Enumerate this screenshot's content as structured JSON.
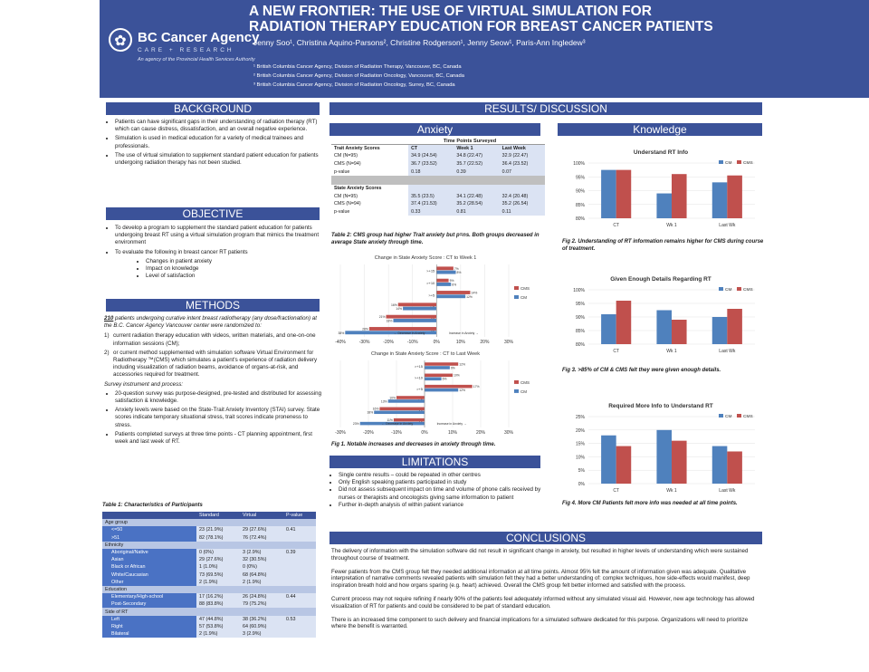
{
  "header": {
    "org": "BC Cancer Agency",
    "org_sub": "CARE + RESEARCH",
    "org_tag": "An agency of the Provincial Health Services Authority",
    "title_line1": "A NEW FRONTIER: THE USE OF VIRTUAL SIMULATION FOR",
    "title_line2": "RADIATION THERAPY EDUCATION FOR BREAST CANCER PATIENTS",
    "authors": "Jenny Soo¹, Christina Aquino-Parsons², Christine Rodgerson¹, Jenny Seow¹, Paris-Ann Ingledew³",
    "affiliations": [
      "¹ British Columbia Cancer Agency, Division of Radiation Therapy, Vancouver, BC, Canada",
      "² British Columbia Cancer Agency, Division of Radiation Oncology, Vancouver, BC, Canada",
      "³ British Columbia Cancer Agency, Division of Radiation Oncology, Surrey, BC, Canada"
    ]
  },
  "background": {
    "heading": "BACKGROUND",
    "bullets": [
      "Patients can have significant gaps in their understanding of radiation therapy (RT) which can cause distress, dissatisfaction, and an overall negative experience.",
      "Simulation is used in medical education for a variety of medical trainees and professionals.",
      "The use of virtual simulation to supplement standard patient education for patients undergoing radiation therapy has not been studied."
    ]
  },
  "objective": {
    "heading": "OBJECTIVE",
    "bullets": [
      "To develop a program to supplement the standard patient education for patients undergoing breast RT using a virtual simulation program that mimics the treatment environment",
      "To evaluate the following in breast cancer RT patients"
    ],
    "sub": [
      "Changes in patient anxiety",
      "Impact on knowledge",
      "Level of satisfaction"
    ]
  },
  "methods": {
    "heading": "METHODS",
    "intro_n": "210",
    "intro": " patients undergoing curative intent breast radiotherapy (any dose/fractionation) at the B.C. Cancer Agency Vancouver center were randomized to:",
    "items": [
      "current radiation therapy education with videos, written materials, and one-on-one information sessions (CM);",
      "or current method supplemented with simulation software Virtual Environment for Radiotherapy ™(CMS) which simulates a patient's experience of radiation delivery including visualization of radiation beams, avoidance of organs-at-risk, and accessories required for treatment."
    ],
    "survey_head": "Survey instrument and process:",
    "survey": [
      "20-question survey was purpose-designed, pre-tested and distributed for assessing satisfaction & knowledge.",
      "Anxiety levels were based on the State-Trait Anxiety Inventory (STAI) survey. State scores indicate temporary situational stress, trait scores indicate proneness to stress.",
      "Patients completed surveys at three time points - CT planning appointment, first week and last week of RT."
    ]
  },
  "characteristics": {
    "caption": "Table 1: Characteristics of Participants",
    "headers": [
      "",
      "Standard",
      "Virtual",
      "P-value"
    ],
    "rows": [
      {
        "type": "sec",
        "label": "Age group"
      },
      {
        "type": "row",
        "label": "<=50",
        "a": "23 (21.9%)",
        "b": "29 (27.6%)",
        "p": "0.41"
      },
      {
        "type": "row",
        "label": ">51",
        "a": "82 (78.1%)",
        "b": "76 (72.4%)",
        "p": ""
      },
      {
        "type": "sec",
        "label": "Ethnicity"
      },
      {
        "type": "row",
        "label": "Aboriginal/Native",
        "a": "0 (0%)",
        "b": "3 (2.9%)",
        "p": "0.39"
      },
      {
        "type": "row",
        "label": "Asian",
        "a": "29 (27.6%)",
        "b": "32 (30.5%)",
        "p": ""
      },
      {
        "type": "row",
        "label": "Black or African",
        "a": "1 (1.0%)",
        "b": "0 (0%)",
        "p": ""
      },
      {
        "type": "row",
        "label": "White/Caucasian",
        "a": "73 (69.5%)",
        "b": "68 (64.8%)",
        "p": ""
      },
      {
        "type": "row",
        "label": "Other",
        "a": "2 (1.9%)",
        "b": "2 (1.9%)",
        "p": ""
      },
      {
        "type": "sec",
        "label": "Education"
      },
      {
        "type": "row",
        "label": "Elementary/High-school",
        "a": "17 (16.2%)",
        "b": "26 (24.8%)",
        "p": "0.44"
      },
      {
        "type": "row",
        "label": "Post-Secondary",
        "a": "88 (83.8%)",
        "b": "79 (75.2%)",
        "p": ""
      },
      {
        "type": "sec",
        "label": "Side of RT"
      },
      {
        "type": "row",
        "label": "Left",
        "a": "47 (44.8%)",
        "b": "38 (36.2%)",
        "p": "0.53"
      },
      {
        "type": "row",
        "label": "Right",
        "a": "57 (53.8%)",
        "b": "64 (60.9%)",
        "p": ""
      },
      {
        "type": "row",
        "label": "Bilateral",
        "a": "2 (1.9%)",
        "b": "3 (2.9%)",
        "p": ""
      }
    ]
  },
  "results": {
    "heading": "RESULTS/ DISCUSSION",
    "anxiety_head": "Anxiety",
    "knowledge_head": "Knowledge",
    "anx_table": {
      "group_header": "Time Points Surveyed",
      "cols": [
        "",
        "CT",
        "Week 1",
        "Last Week"
      ],
      "trait": [
        [
          "Trait Anxiety Scores",
          "CT",
          "Week 1",
          "Last Week"
        ],
        [
          "CM (N=95)",
          "34.9 (24.54)",
          "34.8 (22.47)",
          "32.9 (22.47)"
        ],
        [
          "CMS (N=94)",
          "36.7 (23.52)",
          "35.7 (22.52)",
          "36.4 (23.52)"
        ],
        [
          "p-value",
          "0.18",
          "0.39",
          "0.07"
        ]
      ],
      "state": [
        [
          "State Anxiety Scores",
          "",
          "",
          ""
        ],
        [
          "CM (N=95)",
          "35.5 (23.5)",
          "34.1 (22.48)",
          "32.4 (20.48)"
        ],
        [
          "CMS (N=94)",
          "37.4 (21.53)",
          "35.2 (28.54)",
          "35.2 (26.54)"
        ],
        [
          "p-value",
          "0.33",
          "0.81",
          "0.11"
        ]
      ]
    },
    "table2_caption": "Table 2: CMS group had higher Trait anxiety but p=ns. Both groups decreased in average State anxiety through time.",
    "fig1_caption": "Fig 1. Notable increases and decreases in anxiety through time.",
    "fig2_caption": "Fig 2. Understanding of RT information remains higher for CMS during course of treatment.",
    "fig3_caption": "Fig 3. >85% of CM & CMS felt they were given enough details.",
    "fig4_caption": "Fig 4. More CM Patients felt more info was needed at all time points."
  },
  "chart_data": [
    {
      "type": "bar",
      "orientation": "horizontal",
      "title": "Change in State Anxiety Score : CT to Week 1",
      "categories": [
        ">+15",
        ">+10",
        ">+5",
        "<-5",
        "<-10",
        "<-15"
      ],
      "series": [
        {
          "name": "CMS",
          "color": "#c0504d",
          "values": [
            7,
            5,
            14,
            -16,
            -21,
            -28
          ]
        },
        {
          "name": "CM",
          "color": "#4f81bd",
          "values": [
            8,
            6,
            12,
            -14,
            -18,
            -38
          ]
        }
      ],
      "xlim": [
        -40,
        30
      ],
      "ticks": [
        "-40%",
        "-30%",
        "-20%",
        "-10%",
        "0%",
        "10%",
        "20%",
        "30%"
      ],
      "annotations": [
        "Decrease in Anxiety",
        "Increase in Anxiety"
      ]
    },
    {
      "type": "bar",
      "orientation": "horizontal",
      "title": "Change in State Anxiety Score : CT to Last Week",
      "categories": [
        ">+15",
        ">+10",
        ">+5",
        "<-5",
        "<-10",
        "<-15"
      ],
      "series": [
        {
          "name": "CMS",
          "color": "#c0504d",
          "values": [
            12,
            10,
            17,
            -10,
            -16,
            -11
          ]
        },
        {
          "name": "CM",
          "color": "#4f81bd",
          "values": [
            9,
            6,
            12,
            -13,
            -18,
            -23
          ]
        }
      ],
      "xlim": [
        -30,
        30
      ],
      "ticks": [
        "-30%",
        "-20%",
        "-10%",
        "0%",
        "10%",
        "20%",
        "30%"
      ],
      "annotations": [
        "Decrease in Anxiety",
        "Increase in Anxiety"
      ]
    },
    {
      "type": "bar",
      "title": "Understand RT Info",
      "categories": [
        "CT",
        "Wk 1",
        "Last Wk"
      ],
      "series": [
        {
          "name": "CM",
          "color": "#4f81bd",
          "values": [
            97.5,
            89,
            93
          ]
        },
        {
          "name": "CMS",
          "color": "#c0504d",
          "values": [
            97.5,
            96,
            95.5
          ]
        }
      ],
      "ylim": [
        80,
        100
      ],
      "ticks": [
        "80%",
        "85%",
        "90%",
        "95%",
        "100%"
      ]
    },
    {
      "type": "bar",
      "title": "Given Enough Details Regarding RT",
      "categories": [
        "CT",
        "Wk 1",
        "Last Wk"
      ],
      "series": [
        {
          "name": "CM",
          "color": "#4f81bd",
          "values": [
            91,
            92.5,
            90
          ]
        },
        {
          "name": "CMS",
          "color": "#c0504d",
          "values": [
            96,
            89,
            93
          ]
        }
      ],
      "ylim": [
        80,
        100
      ],
      "ticks": [
        "80%",
        "85%",
        "90%",
        "95%",
        "100%"
      ]
    },
    {
      "type": "bar",
      "title": "Required More Info to Understand RT",
      "categories": [
        "CT",
        "Wk 1",
        "Last Wk"
      ],
      "series": [
        {
          "name": "CM",
          "color": "#4f81bd",
          "values": [
            18,
            20,
            14
          ]
        },
        {
          "name": "CMS",
          "color": "#c0504d",
          "values": [
            14,
            16,
            12
          ]
        }
      ],
      "ylim": [
        0,
        25
      ],
      "ticks": [
        "0%",
        "5%",
        "10%",
        "15%",
        "20%",
        "25%"
      ]
    }
  ],
  "limitations": {
    "heading": "LIMITATIONS",
    "bullets": [
      "Single centre results – could be repeated in other centres",
      "Only English speaking patients participated in study",
      "Did not assess subsequent impact on time and volume of phone calls received by nurses or therapists and oncologists giving same information to patient",
      "Further in-depth analysis of within patient variance"
    ]
  },
  "conclusions": {
    "heading": "CONCLUSIONS",
    "paragraphs": [
      "The delivery of information with the simulation software did not result in significant change in anxiety, but resulted in higher levels of understanding which were sustained throughout course of treatment.",
      "Fewer patients from the CMS group felt they needed additional information at all time points. Almost 95% felt the amount of information given was adequate. Qualitative interpretation of narrative comments revealed patients with simulation felt they had a better understanding of: complex techniques, how side-effects would manifest, deep inspiration breath hold and how organs sparing (e.g. heart) achieved. Overall the CMS group felt better informed and satisfied with the process.",
      "Current process may not require refining if nearly 90% of the patients feel adequately informed without any simulated visual aid. However, new age technology has allowed visualization of RT for patients and could be considered to be part of standard education.",
      "There is an increased time component to such delivery and financial implications for a simulated software dedicated for this purpose. Organizations will need to prioritize where the benefit is warranted."
    ]
  }
}
